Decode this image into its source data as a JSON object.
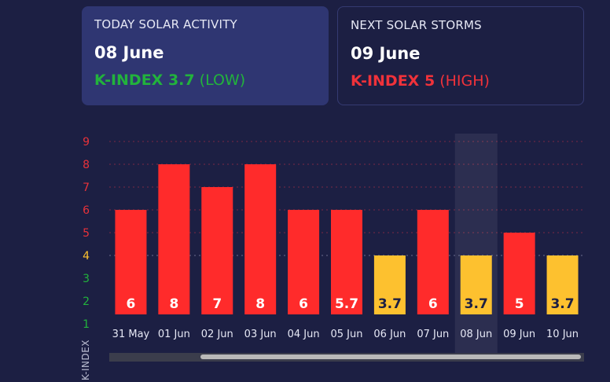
{
  "today": {
    "title": "TODAY SOLAR ACTIVITY",
    "date": "08 June",
    "k_text": "K-INDEX 3.7",
    "k_level": "(LOW)",
    "color": "#22b33c"
  },
  "next": {
    "title": "NEXT SOLAR STORMS",
    "date": "09 June",
    "k_text": "K-INDEX 5",
    "k_level": "(HIGH)",
    "color": "#f0323a"
  },
  "chart_data": {
    "type": "bar",
    "categories": [
      "31 May",
      "01 Jun",
      "02 Jun",
      "03 Jun",
      "04 Jun",
      "05 Jun",
      "06 Jun",
      "07 Jun",
      "08 Jun",
      "09 Jun",
      "10 Jun"
    ],
    "values": [
      6,
      8,
      7,
      8,
      6,
      5.7,
      3.7,
      6,
      3.7,
      5,
      3.7
    ],
    "value_labels": [
      "6",
      "8",
      "7",
      "8",
      "6",
      "5.7",
      "3.7",
      "6",
      "3.7",
      "5",
      "3.7"
    ],
    "plotted_values": [
      6,
      8,
      7,
      8,
      6,
      6,
      4,
      6,
      4,
      5,
      4
    ],
    "ylabel": "K-INDEX",
    "yticks": [
      "1",
      "2",
      "3",
      "4",
      "5",
      "6",
      "7",
      "8",
      "9"
    ],
    "ylim": [
      1,
      9
    ],
    "highlight_category": "08 Jun",
    "grid": true,
    "colors": {
      "high": "#ff2b2b",
      "low": "#fdc12f",
      "tick_high": "#e8323a",
      "tick_mid": "#fdc12f",
      "tick_low": "#22b33c",
      "label_on_red": "#ffffff",
      "label_on_yellow": "#1c1f43"
    }
  }
}
